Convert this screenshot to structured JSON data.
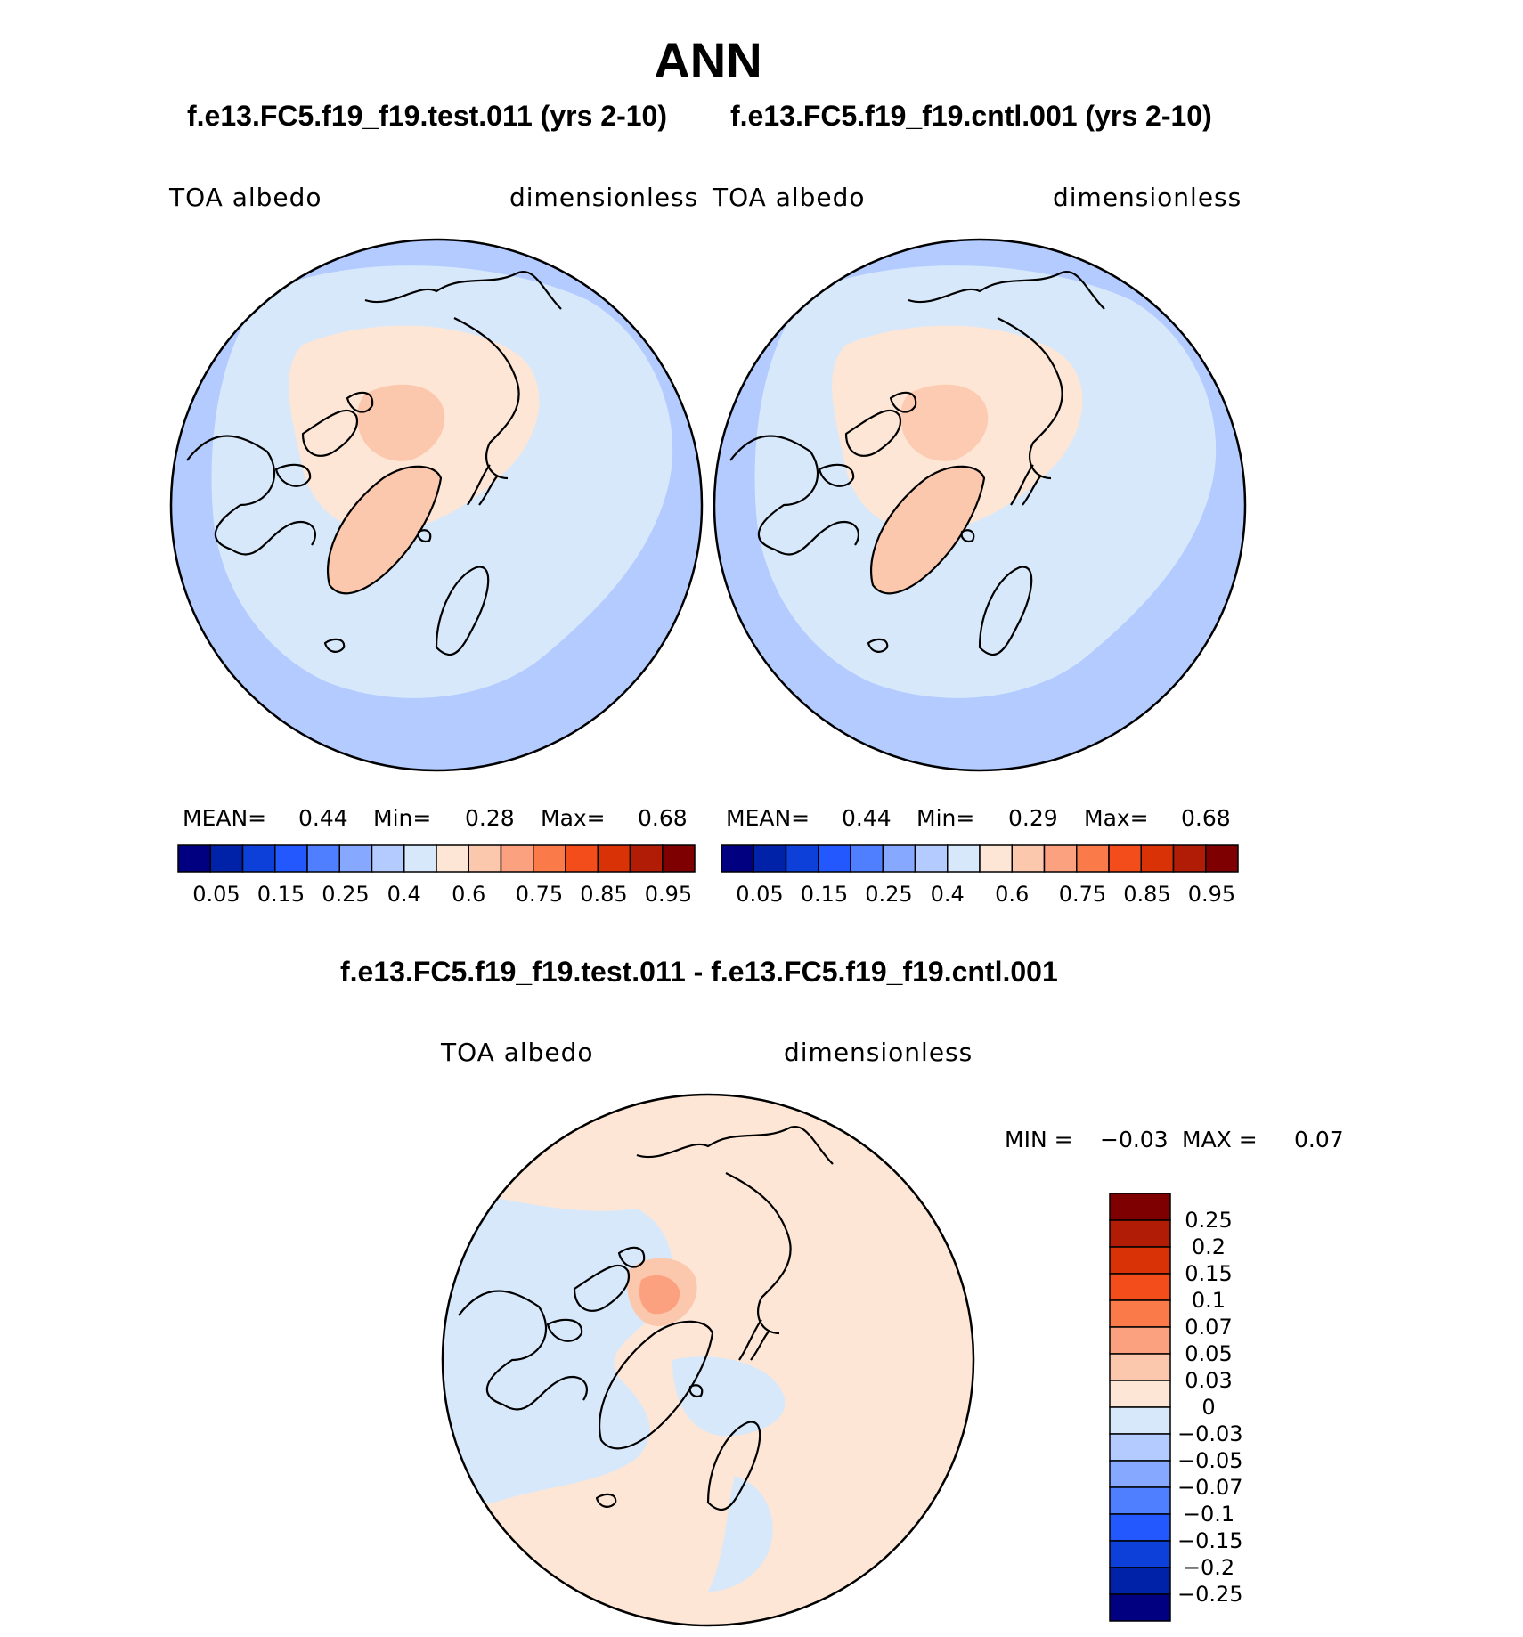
{
  "figure": {
    "season": "ANN",
    "test_title": "f.e13.FC5.f19_f19.test.011 (yrs 2-10)",
    "cntl_title": "f.e13.FC5.f19_f19.cntl.001 (yrs 2-10)",
    "diff_title": "f.e13.FC5.f19_f19.test.011 - f.e13.FC5.f19_f19.cntl.001"
  },
  "panels": {
    "test": {
      "variable": "TOA  albedo",
      "units": "dimensionless",
      "mean_label": "MEAN=",
      "mean": "0.44",
      "min_label": "Min=",
      "min": "0.28",
      "max_label": "Max=",
      "max": "0.68"
    },
    "cntl": {
      "variable": "TOA  albedo",
      "units": "dimensionless",
      "mean_label": "MEAN=",
      "mean": "0.44",
      "min_label": "Min=",
      "min": "0.29",
      "max_label": "Max=",
      "max": "0.68"
    },
    "diff": {
      "variable": "TOA  albedo",
      "units": "dimensionless",
      "min_label": "MIN =",
      "min": "−0.03",
      "max_label": "MAX =",
      "max": "0.07"
    }
  },
  "colorbars": {
    "abs_colors": [
      "#000080",
      "#0022a8",
      "#0d3fd9",
      "#2458ff",
      "#4f7eff",
      "#86a8ff",
      "#b3cbff",
      "#d7e8fb",
      "#fde6d5",
      "#fcc8ad",
      "#fca180",
      "#fb7a4a",
      "#f24d1b",
      "#d83206",
      "#b01c05",
      "#7e0000"
    ],
    "abs_ticks": [
      "0.05",
      "0.15",
      "0.25",
      "0.4",
      "0.6",
      "0.75",
      "0.85",
      "0.95"
    ],
    "diff_colors": [
      "#7e0000",
      "#b01c05",
      "#d83206",
      "#f24d1b",
      "#fb7a4a",
      "#fca180",
      "#fcc8ad",
      "#fde6d5",
      "#d7e8fb",
      "#b3cbff",
      "#86a8ff",
      "#4f7eff",
      "#2458ff",
      "#0d3fd9",
      "#0022a8",
      "#000080"
    ],
    "diff_ticks": [
      "0.25",
      "0.2",
      "0.15",
      "0.1",
      "0.07",
      "0.05",
      "0.03",
      "0",
      "−0.03",
      "−0.05",
      "−0.07",
      "−0.1",
      "−0.15",
      "−0.2",
      "−0.25"
    ]
  },
  "map_fill_colors": {
    "ocean_low": "#b3cbff",
    "ocean_mid": "#86a8ff",
    "ice_mid": "#d7e8fb",
    "arctic": "#fde6d5",
    "greenland": "#fcc8ad",
    "diff_bg": "#fde6d5",
    "diff_neg": "#d7e8fb",
    "diff_pos_peak": "#fca180",
    "coast": "#000000"
  }
}
